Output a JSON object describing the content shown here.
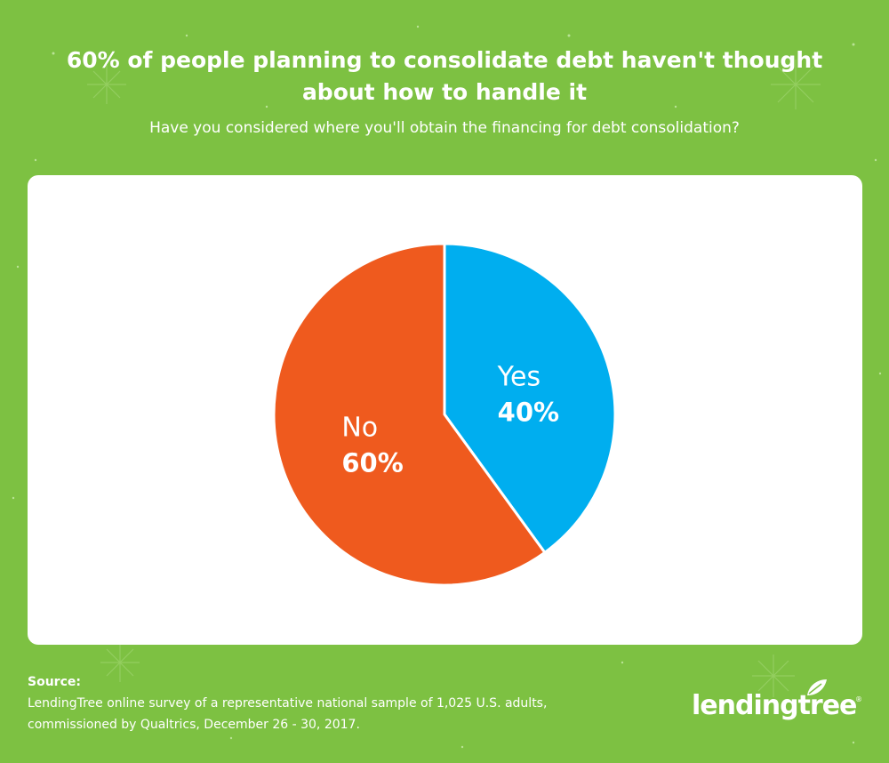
{
  "title_lines": [
    "60% of people planning to consolidate debt haven't thought",
    "about how to handle it"
  ],
  "subtitle": "Have you considered where you'll obtain the financing for debt consolidation?",
  "colors": {
    "background": "#7dc142",
    "card": "#ffffff",
    "yes": "#00aeef",
    "no": "#ef5a1e",
    "text": "#ffffff"
  },
  "chart_data": {
    "type": "pie",
    "title": "60% of people planning to consolidate debt haven't thought about how to handle it",
    "subtitle": "Have you considered where you'll obtain the financing for debt consolidation?",
    "start_angle": "12 o'clock",
    "direction": "clockwise",
    "slices": [
      {
        "label": "Yes",
        "value": 40,
        "value_label": "40%",
        "color": "#00aeef"
      },
      {
        "label": "No",
        "value": 60,
        "value_label": "60%",
        "color": "#ef5a1e"
      }
    ]
  },
  "source": {
    "heading": "Source:",
    "lines": [
      "LendingTree online survey of a representative national sample of 1,025 U.S. adults,",
      "commissioned by Qualtrics, December 26 - 30, 2017."
    ]
  },
  "logo": {
    "text": "lendingtree",
    "reg_mark": "®",
    "icon": "tree-leaf-icon"
  }
}
